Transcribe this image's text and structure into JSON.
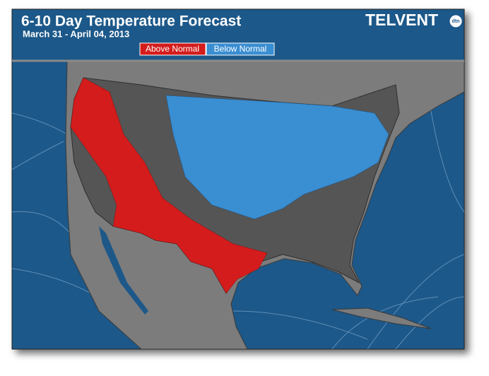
{
  "header": {
    "title": "6-10 Day Temperature Forecast",
    "subtitle": "March 31 - April 04, 2013",
    "logo": "TELVENT",
    "logo_badge": "dtn"
  },
  "legend": [
    {
      "label": "Above Normal",
      "color": "#d41c1c"
    },
    {
      "label": "Below Normal",
      "color": "#3a8ed2"
    }
  ]
}
